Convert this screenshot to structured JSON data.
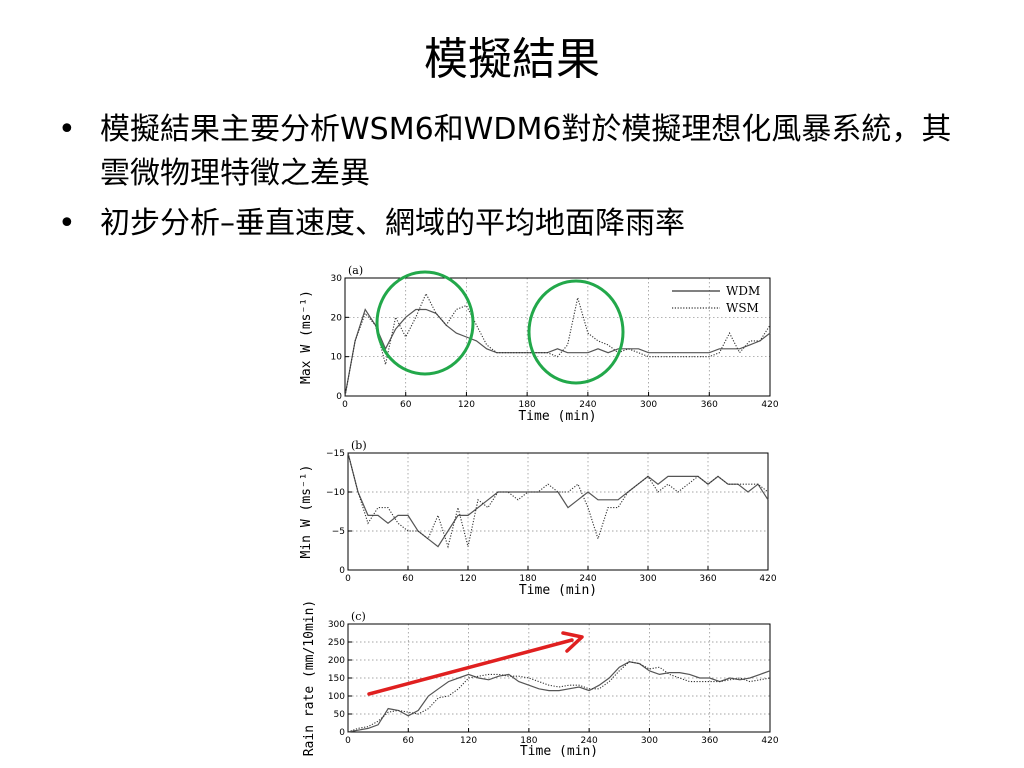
{
  "slide": {
    "title": "模擬結果",
    "bullets": [
      {
        "marker": "•",
        "text": "模擬結果主要分析WSM6和WDM6對於模擬理想化風暴系統，其雲微物理特徵之差異"
      },
      {
        "marker": "•",
        "text": "初步分析–垂直速度、網域的平均地面降雨率"
      }
    ],
    "annotation_colors": {
      "circle": "#22a84a",
      "arrow": "#e02020"
    }
  },
  "chart_data": [
    {
      "type": "line",
      "panel": "(a)",
      "xlabel": "Time (min)",
      "ylabel": "Max W (ms⁻¹)",
      "xlim": [
        0,
        420
      ],
      "ylim": [
        0,
        30
      ],
      "xticks": [
        0,
        60,
        120,
        180,
        240,
        300,
        360,
        420
      ],
      "yticks": [
        0,
        10,
        20,
        30
      ],
      "grid": true,
      "legend": "top-right",
      "series": [
        {
          "name": "WDM",
          "style": "solid",
          "x": [
            0,
            10,
            20,
            30,
            40,
            50,
            60,
            70,
            80,
            90,
            100,
            110,
            120,
            130,
            140,
            150,
            160,
            170,
            180,
            190,
            200,
            210,
            220,
            230,
            240,
            250,
            260,
            270,
            280,
            290,
            300,
            310,
            320,
            330,
            340,
            350,
            360,
            370,
            380,
            390,
            400,
            410,
            420
          ],
          "values": [
            0,
            14,
            22,
            18,
            12,
            17,
            20,
            22,
            22,
            21,
            18,
            16,
            15,
            14,
            12,
            11,
            11,
            11,
            11,
            11,
            11,
            12,
            11,
            11,
            11,
            12,
            11,
            12,
            12,
            12,
            11,
            11,
            11,
            11,
            11,
            11,
            11,
            12,
            12,
            12,
            13,
            14,
            16
          ]
        },
        {
          "name": "WSM",
          "style": "dotted",
          "x": [
            0,
            10,
            20,
            30,
            40,
            50,
            60,
            70,
            80,
            90,
            100,
            110,
            120,
            130,
            140,
            150,
            160,
            170,
            180,
            190,
            200,
            210,
            220,
            230,
            240,
            250,
            260,
            270,
            280,
            290,
            300,
            310,
            320,
            330,
            340,
            350,
            360,
            370,
            380,
            390,
            400,
            410,
            420
          ],
          "values": [
            0,
            14,
            21,
            18,
            8,
            20,
            15,
            20,
            26,
            21,
            18,
            22,
            23,
            18,
            13,
            11,
            11,
            11,
            11,
            11,
            11,
            10,
            13,
            25,
            16,
            14,
            13,
            11,
            12,
            11,
            10,
            10,
            10,
            10,
            10,
            10,
            10,
            11,
            16,
            11,
            14,
            14,
            18
          ]
        }
      ]
    },
    {
      "type": "line",
      "panel": "(b)",
      "xlabel": "Time (min)",
      "ylabel": "Min W (ms⁻¹)",
      "xlim": [
        0,
        420
      ],
      "ylim": [
        0,
        -15
      ],
      "xticks": [
        0,
        60,
        120,
        180,
        240,
        300,
        360,
        420
      ],
      "yticks": [
        0,
        -5,
        -10,
        -15
      ],
      "grid": true,
      "legend": "none",
      "series": [
        {
          "name": "WDM",
          "style": "solid",
          "x": [
            0,
            10,
            20,
            30,
            40,
            50,
            60,
            70,
            80,
            90,
            100,
            110,
            120,
            130,
            140,
            150,
            160,
            170,
            180,
            190,
            200,
            210,
            220,
            230,
            240,
            250,
            260,
            270,
            280,
            290,
            300,
            310,
            320,
            330,
            340,
            350,
            360,
            370,
            380,
            390,
            400,
            410,
            420
          ],
          "values": [
            -15,
            -10,
            -7,
            -7,
            -6,
            -7,
            -7,
            -5,
            -4,
            -3,
            -5,
            -7,
            -7,
            -8,
            -9,
            -10,
            -10,
            -10,
            -10,
            -10,
            -10,
            -10,
            -8,
            -9,
            -10,
            -9,
            -9,
            -9,
            -10,
            -11,
            -12,
            -11,
            -12,
            -12,
            -12,
            -12,
            -11,
            -12,
            -11,
            -11,
            -10,
            -11,
            -9
          ]
        },
        {
          "name": "WSM",
          "style": "dotted",
          "x": [
            0,
            10,
            20,
            30,
            40,
            50,
            60,
            70,
            80,
            90,
            100,
            110,
            120,
            130,
            140,
            150,
            160,
            170,
            180,
            190,
            200,
            210,
            220,
            230,
            240,
            250,
            260,
            270,
            280,
            290,
            300,
            310,
            320,
            330,
            340,
            350,
            360,
            370,
            380,
            390,
            400,
            410,
            420
          ],
          "values": [
            -15,
            -10,
            -6,
            -8,
            -8,
            -6,
            -5,
            -5,
            -4,
            -7,
            -3,
            -8,
            -3,
            -9,
            -8,
            -10,
            -10,
            -9,
            -10,
            -10,
            -11,
            -10,
            -10,
            -11,
            -8,
            -4,
            -8,
            -8,
            -10,
            -11,
            -12,
            -10,
            -11,
            -10,
            -11,
            -12,
            -11,
            -12,
            -11,
            -11,
            -11,
            -11,
            -10
          ]
        }
      ]
    },
    {
      "type": "line",
      "panel": "(c)",
      "xlabel": "Time (min)",
      "ylabel": "Rain rate (mm/10min)",
      "xlim": [
        0,
        420
      ],
      "ylim": [
        0,
        300
      ],
      "xticks": [
        0,
        60,
        120,
        180,
        240,
        300,
        360,
        420
      ],
      "yticks": [
        0,
        50,
        100,
        150,
        200,
        250,
        300
      ],
      "grid": true,
      "legend": "none",
      "series": [
        {
          "name": "WDM",
          "style": "solid",
          "x": [
            0,
            10,
            20,
            30,
            40,
            50,
            60,
            70,
            80,
            90,
            100,
            110,
            120,
            130,
            140,
            150,
            160,
            170,
            180,
            190,
            200,
            210,
            220,
            230,
            240,
            250,
            260,
            270,
            280,
            290,
            300,
            310,
            320,
            330,
            340,
            350,
            360,
            370,
            380,
            390,
            400,
            410,
            420
          ],
          "values": [
            0,
            5,
            10,
            20,
            65,
            60,
            45,
            60,
            100,
            120,
            140,
            150,
            160,
            150,
            145,
            155,
            160,
            140,
            130,
            120,
            115,
            115,
            120,
            125,
            115,
            130,
            150,
            180,
            195,
            190,
            170,
            160,
            165,
            165,
            160,
            150,
            150,
            140,
            150,
            145,
            150,
            160,
            170
          ]
        },
        {
          "name": "WSM",
          "style": "dotted",
          "x": [
            0,
            10,
            20,
            30,
            40,
            50,
            60,
            70,
            80,
            90,
            100,
            110,
            120,
            130,
            140,
            150,
            160,
            170,
            180,
            190,
            200,
            210,
            220,
            230,
            240,
            250,
            260,
            270,
            280,
            290,
            300,
            310,
            320,
            330,
            340,
            350,
            360,
            370,
            380,
            390,
            400,
            410,
            420
          ],
          "values": [
            0,
            10,
            15,
            30,
            55,
            60,
            55,
            50,
            65,
            95,
            100,
            120,
            150,
            155,
            160,
            160,
            155,
            155,
            150,
            140,
            130,
            125,
            130,
            130,
            120,
            120,
            140,
            170,
            195,
            190,
            175,
            180,
            160,
            150,
            140,
            140,
            140,
            140,
            145,
            150,
            140,
            145,
            150
          ]
        }
      ]
    }
  ]
}
